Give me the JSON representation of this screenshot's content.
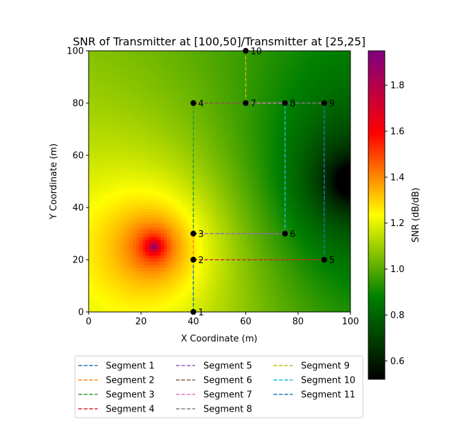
{
  "chart_data": {
    "type": "heatmap",
    "title": "SNR of Transmitter at [100,50]/Transmitter at [25,25]",
    "xlabel": "X Coordinate (m)",
    "ylabel": "Y Coordinate (m)",
    "xlim": [
      0,
      100
    ],
    "ylim": [
      0,
      100
    ],
    "xticks": [
      0,
      20,
      40,
      60,
      80,
      100
    ],
    "yticks": [
      0,
      20,
      40,
      60,
      80,
      100
    ],
    "colorbar": {
      "label": "SNR (dB/dB)",
      "range": [
        0.52,
        1.95
      ],
      "ticks": [
        0.6,
        0.8,
        1.0,
        1.2,
        1.4,
        1.6,
        1.8
      ],
      "tick_labels": [
        "0.6",
        "0.8",
        "1.0",
        "1.2",
        "1.4",
        "1.6",
        "1.8"
      ],
      "colormap": [
        "#000000",
        "#008000",
        "#ffff00",
        "#ff0000",
        "#800080"
      ]
    },
    "transmitters": [
      [
        100,
        50
      ],
      [
        25,
        25
      ]
    ],
    "waypoints": [
      {
        "label": "1",
        "x": 40,
        "y": 0
      },
      {
        "label": "2",
        "x": 40,
        "y": 20
      },
      {
        "label": "3",
        "x": 40,
        "y": 30
      },
      {
        "label": "4",
        "x": 40,
        "y": 80
      },
      {
        "label": "5",
        "x": 90,
        "y": 20
      },
      {
        "label": "6",
        "x": 75,
        "y": 30
      },
      {
        "label": "7",
        "x": 60,
        "y": 80
      },
      {
        "label": "8",
        "x": 75,
        "y": 80
      },
      {
        "label": "9",
        "x": 90,
        "y": 80
      },
      {
        "label": "10",
        "x": 60,
        "y": 100
      }
    ],
    "segments": [
      {
        "name": "Segment 1",
        "color": "#1f77b4",
        "from": [
          40,
          0
        ],
        "to": [
          40,
          20
        ]
      },
      {
        "name": "Segment 2",
        "color": "#ff7f0e",
        "from": [
          40,
          20
        ],
        "to": [
          40,
          30
        ]
      },
      {
        "name": "Segment 3",
        "color": "#2ca02c",
        "from": [
          40,
          30
        ],
        "to": [
          40,
          80
        ]
      },
      {
        "name": "Segment 4",
        "color": "#d62728",
        "from": [
          40,
          20
        ],
        "to": [
          90,
          20
        ]
      },
      {
        "name": "Segment 5",
        "color": "#9467bd",
        "from": [
          40,
          30
        ],
        "to": [
          75,
          30
        ]
      },
      {
        "name": "Segment 6",
        "color": "#8c564b",
        "from": [
          40,
          80
        ],
        "to": [
          60,
          80
        ]
      },
      {
        "name": "Segment 7",
        "color": "#e377c2",
        "from": [
          60,
          80
        ],
        "to": [
          75,
          80
        ]
      },
      {
        "name": "Segment 8",
        "color": "#7f7f7f",
        "from": [
          75,
          80
        ],
        "to": [
          90,
          80
        ]
      },
      {
        "name": "Segment 9",
        "color": "#bcbd22",
        "from": [
          60,
          80
        ],
        "to": [
          60,
          100
        ]
      },
      {
        "name": "Segment 10",
        "color": "#17becf",
        "from": [
          75,
          30
        ],
        "to": [
          75,
          80
        ]
      },
      {
        "name": "Segment 11",
        "color": "#1f77b4",
        "from": [
          90,
          20
        ],
        "to": [
          90,
          80
        ]
      }
    ],
    "legend": "below-center"
  }
}
